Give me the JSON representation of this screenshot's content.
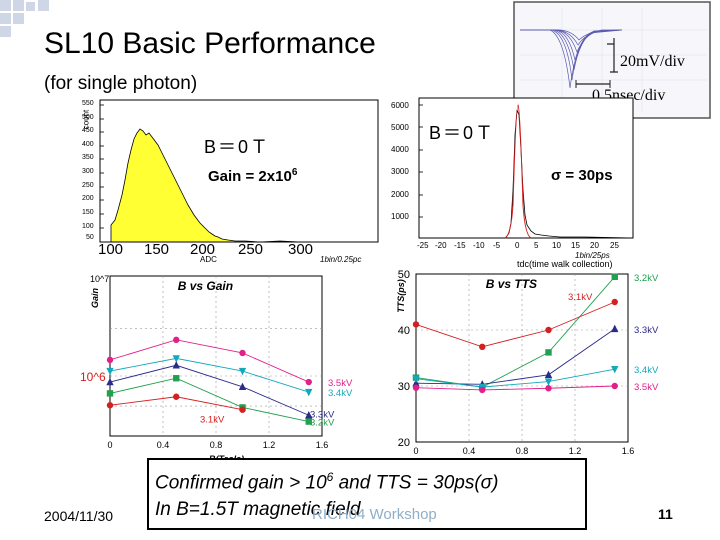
{
  "slide": {
    "title": "SL10 Basic Performance",
    "subtitle": "(for single photon)",
    "date": "2004/11/30",
    "workshop": "RICH04 Workshop",
    "page_number": "11"
  },
  "conclusion": {
    "line1_pre": "Confirmed gain > 10",
    "line1_sup": "6",
    "line1_post": " and TTS = 30ps(",
    "line1_sigma": "σ",
    "line1_end": ")",
    "line2": "In B=1.5T magnetic field"
  },
  "scope": {
    "vdiv": "20mV/div",
    "tdiv": "0.5nsec/div"
  },
  "adc_hist": {
    "field_label": "B＝0Ｔ",
    "gain_label": "Gain = 2x10",
    "gain_sup": "6",
    "ylabel": "count",
    "xlabel": "ADC",
    "bin_note": "1bin/0.25pc",
    "xticks": [
      "100",
      "150",
      "200",
      "250",
      "300"
    ],
    "yticks": [
      "550",
      "500",
      "450",
      "400",
      "350",
      "300",
      "250",
      "200",
      "150",
      "100",
      "50"
    ]
  },
  "tdc_hist": {
    "field_label": "B＝0Ｔ",
    "sigma_label": "σ = 30ps",
    "xlabel": "tdc(time walk collection)",
    "bin_note": "1bin/25ps",
    "xticks": [
      "-25",
      "-20",
      "-15",
      "-10",
      "-5",
      "0",
      "5",
      "10",
      "15",
      "20",
      "25"
    ],
    "yticks": [
      "6000",
      "5000",
      "4000",
      "3000",
      "2000",
      "1000"
    ]
  },
  "chart_data": [
    {
      "type": "line",
      "title": "B vs Gain",
      "xlabel": "B(Tesla)",
      "ylabel": "Gain",
      "y_scale": "log",
      "xticks": [
        "0",
        "0.4",
        "0.8",
        "1.2",
        "1.6"
      ],
      "yticks": [
        "10^7",
        "10^6"
      ],
      "x": [
        0,
        0.5,
        1.0,
        1.5
      ],
      "series": [
        {
          "name": "3.5kV",
          "color": "#e0218a",
          "marker": "circle",
          "values": [
            1450000.0,
            2300000.0,
            1700000.0,
            870000.0
          ]
        },
        {
          "name": "3.4kV",
          "color": "#14a8bd",
          "marker": "triangle-down",
          "values": [
            1120000.0,
            1500000.0,
            1120000.0,
            690000.0
          ]
        },
        {
          "name": "3.3kV",
          "color": "#2b2b8c",
          "marker": "triangle",
          "values": [
            870000.0,
            1280000.0,
            780000.0,
            405000.0
          ]
        },
        {
          "name": "3.2kV",
          "color": "#22a050",
          "marker": "square",
          "values": [
            670000.0,
            950000.0,
            485000.0,
            350000.0
          ]
        },
        {
          "name": "3.1kV",
          "color": "#d42020",
          "marker": "circle",
          "values": [
            510000.0,
            620000.0,
            460000.0,
            null
          ]
        }
      ]
    },
    {
      "type": "line",
      "title": "B vs TTS",
      "xlabel": "B(Tesla)",
      "ylabel": "TTS(ps)",
      "xticks": [
        "0",
        "0.4",
        "0.8",
        "1.2",
        "1.6"
      ],
      "yticks": [
        "50",
        "40",
        "30",
        "20"
      ],
      "ylim": [
        20,
        50
      ],
      "x": [
        0,
        0.5,
        1.0,
        1.5
      ],
      "series": [
        {
          "name": "3.2kV",
          "color": "#22a050",
          "marker": "square",
          "values": [
            31.5,
            29.8,
            36.0,
            49.5
          ]
        },
        {
          "name": "3.1kV",
          "color": "#d42020",
          "marker": "circle",
          "values": [
            41.0,
            37.0,
            40.0,
            45.0
          ]
        },
        {
          "name": "3.3kV",
          "color": "#2b2b8c",
          "marker": "triangle",
          "values": [
            30.5,
            30.3,
            32.0,
            40.2
          ]
        },
        {
          "name": "3.4kV",
          "color": "#14a8bd",
          "marker": "triangle-down",
          "values": [
            31.3,
            29.8,
            30.8,
            33.0
          ]
        },
        {
          "name": "3.5kV",
          "color": "#e0218a",
          "marker": "circle",
          "values": [
            29.7,
            29.3,
            29.6,
            30.0
          ]
        }
      ]
    }
  ]
}
